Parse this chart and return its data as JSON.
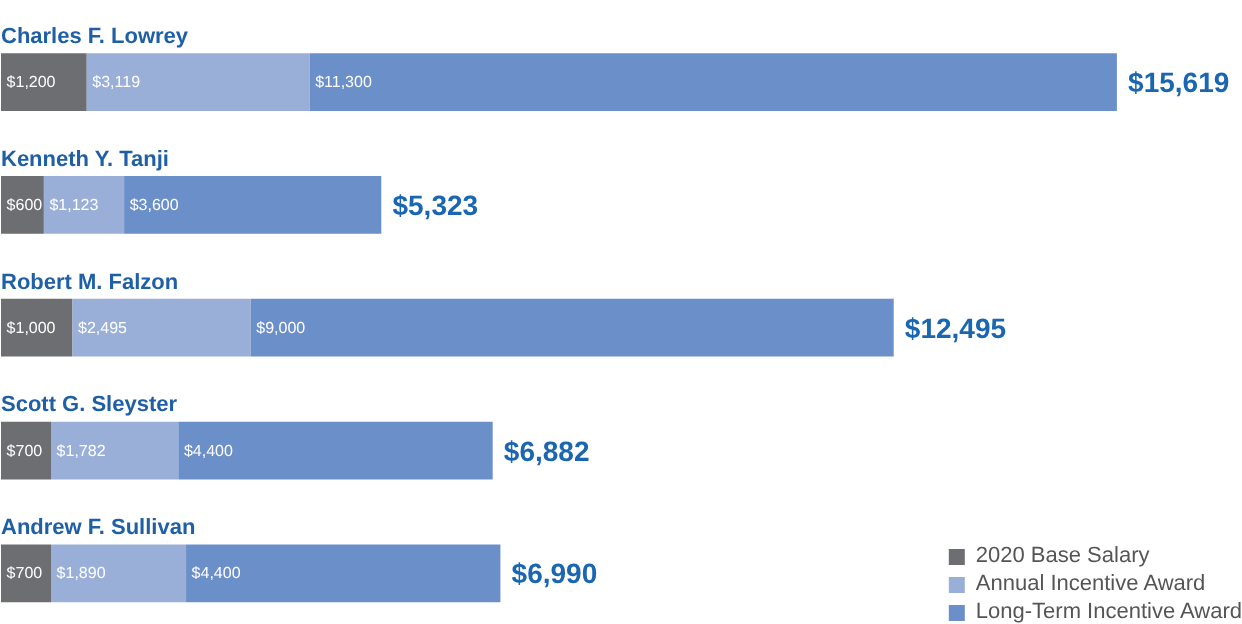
{
  "chart_data": {
    "type": "bar",
    "orientation": "horizontal",
    "stacked": true,
    "categories": [
      "Charles F. Lowrey",
      "Kenneth Y. Tanji",
      "Robert M. Falzon",
      "Scott G. Sleyster",
      "Andrew F. Sullivan"
    ],
    "series": [
      {
        "name": "2020 Base Salary",
        "color": "#6d6e71",
        "values": [
          1200,
          600,
          1000,
          700,
          700
        ],
        "value_labels": [
          "$1,200",
          "$600",
          "$1,000",
          "$700",
          "$700"
        ]
      },
      {
        "name": "Annual Incentive Award",
        "color": "#9aafd8",
        "values": [
          3119,
          1123,
          2495,
          1782,
          1890
        ],
        "value_labels": [
          "$3,119",
          "$1,123",
          "$2,495",
          "$1,782",
          "$1,890"
        ]
      },
      {
        "name": "Long-Term Incentive Award",
        "color": "#6b8fc8",
        "values": [
          11300,
          3600,
          9000,
          4400,
          4400
        ],
        "value_labels": [
          "$11,300",
          "$3,600",
          "$9,000",
          "$4,400",
          "$4,400"
        ]
      }
    ],
    "totals": [
      "$15,619",
      "$5,323",
      "$12,495",
      "$6,882",
      "$6,990"
    ],
    "legend": "bottom right",
    "grid": false
  }
}
